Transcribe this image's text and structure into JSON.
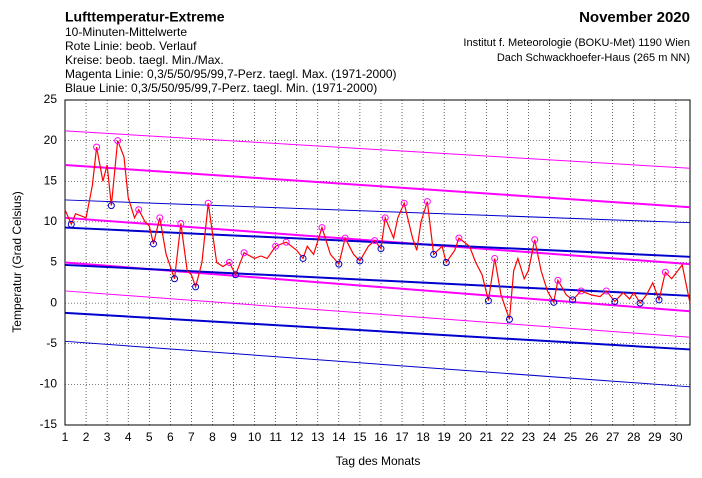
{
  "chart_data": {
    "type": "line",
    "title": "Lufttemperatur-Extreme",
    "subtitle_lines": [
      "10-Minuten-Mittelwerte",
      "Rote Linie: beob. Verlauf",
      "Kreise: beob. taegl. Min./Max.",
      "Magenta Linie: 0,3/5/50/95/99,7-Perz. taegl. Max. (1971-2000)",
      "Blaue Linie: 0,3/5/50/95/99,7-Perz. taegl. Min. (1971-2000)"
    ],
    "period": "November 2020",
    "source_lines": [
      "Institut f. Meteorologie (BOKU-Met) 1190 Wien",
      "Dach Schwackhoefer-Haus (265 m NN)"
    ],
    "xlabel": "Tag des Monats",
    "ylabel": "Temperatur (Grad Celsius)",
    "xlim": [
      1,
      30.67
    ],
    "ylim": [
      -15,
      25
    ],
    "xticks": [
      1,
      2,
      3,
      4,
      5,
      6,
      7,
      8,
      9,
      10,
      11,
      12,
      13,
      14,
      15,
      16,
      17,
      18,
      19,
      20,
      21,
      22,
      23,
      24,
      25,
      26,
      27,
      28,
      29,
      30
    ],
    "yticks": [
      -15,
      -10,
      -5,
      0,
      5,
      10,
      15,
      20,
      25
    ],
    "grid": true,
    "series": [
      {
        "style": "line",
        "color": "#ff00ff",
        "width": 1,
        "x": [
          1,
          30.67
        ],
        "values": [
          21.2,
          16.6
        ]
      },
      {
        "style": "line",
        "color": "#ff00ff",
        "width": 2,
        "x": [
          1,
          30.67
        ],
        "values": [
          17,
          11.8
        ]
      },
      {
        "style": "line",
        "color": "#ff00ff",
        "width": 2,
        "x": [
          1,
          30.67
        ],
        "values": [
          10.5,
          4.8
        ]
      },
      {
        "style": "line",
        "color": "#ff00ff",
        "width": 2,
        "x": [
          1,
          30.67
        ],
        "values": [
          5,
          -1
        ]
      },
      {
        "style": "line",
        "color": "#ff00ff",
        "width": 1,
        "x": [
          1,
          30.67
        ],
        "values": [
          1.5,
          -4.2
        ]
      },
      {
        "style": "line",
        "color": "#0000cc",
        "width": 1,
        "x": [
          1,
          30.67
        ],
        "values": [
          12.7,
          9.9
        ]
      },
      {
        "style": "line",
        "color": "#0000cc",
        "width": 2,
        "x": [
          1,
          30.67
        ],
        "values": [
          9.3,
          5.7
        ]
      },
      {
        "style": "line",
        "color": "#0000cc",
        "width": 2,
        "x": [
          1,
          30.67
        ],
        "values": [
          4.7,
          0.9
        ]
      },
      {
        "style": "line",
        "color": "#0000cc",
        "width": 2,
        "x": [
          1,
          30.67
        ],
        "values": [
          -1.2,
          -5.7
        ]
      },
      {
        "style": "line",
        "color": "#0000cc",
        "width": 1,
        "x": [
          1,
          30.67
        ],
        "values": [
          -4.7,
          -10.3
        ]
      },
      {
        "style": "line",
        "color": "#ff0000",
        "width": 1.2,
        "x": [
          1,
          1.3,
          1.5,
          2,
          2.3,
          2.5,
          2.8,
          3,
          3.2,
          3.5,
          3.8,
          4,
          4.3,
          4.5,
          4.8,
          5,
          5.2,
          5.5,
          5.8,
          6.2,
          6.5,
          6.8,
          7,
          7.2,
          7.5,
          7.8,
          8.2,
          8.5,
          8.8,
          9.1,
          9.5,
          10,
          10.3,
          10.6,
          11,
          11.5,
          12,
          12.3,
          12.5,
          12.8,
          13.2,
          13.6,
          14,
          14.3,
          14.7,
          15,
          15.4,
          15.7,
          16,
          16.2,
          16.6,
          16.8,
          17.1,
          17.5,
          17.7,
          17.9,
          18.2,
          18.5,
          18.9,
          19.1,
          19.5,
          19.7,
          20.2,
          20.5,
          20.8,
          21.1,
          21.4,
          21.7,
          22.1,
          22.3,
          22.5,
          22.8,
          23,
          23.3,
          23.6,
          23.9,
          24.2,
          24.4,
          24.8,
          25.1,
          25.5,
          26,
          26.4,
          26.7,
          27.1,
          27.5,
          27.8,
          28,
          28.3,
          28.6,
          28.9,
          29.2,
          29.5,
          29.8,
          30.3,
          30.67
        ],
        "values": [
          11.5,
          9.7,
          11,
          10.5,
          14.5,
          19.2,
          15,
          17,
          12,
          20,
          18,
          13,
          10.5,
          11.5,
          10,
          9.5,
          7.3,
          10.5,
          6,
          3,
          9.8,
          4,
          3.5,
          2,
          5,
          12.3,
          5,
          4.5,
          5,
          3.5,
          6.2,
          5.5,
          5.8,
          5.5,
          7,
          7.5,
          6.5,
          5.5,
          7,
          6,
          9.3,
          6,
          4.8,
          8,
          6,
          5.2,
          7,
          7.7,
          6.7,
          10.5,
          8,
          10.5,
          12.3,
          8,
          6.5,
          10,
          12.5,
          6,
          7,
          5,
          6.5,
          8,
          7,
          5,
          3.5,
          0.3,
          5.5,
          1,
          -2,
          4,
          5.5,
          3,
          4,
          7.8,
          4,
          1.5,
          0.1,
          2.8,
          1,
          0.4,
          1.5,
          1,
          0.8,
          1.5,
          0.2,
          1.3,
          0.5,
          1.3,
          0,
          1,
          2.5,
          0.4,
          3.8,
          3,
          4.7,
          0
        ]
      },
      {
        "style": "circle",
        "color": "#ff00ff",
        "width": 1,
        "x": [
          2.5,
          3.5,
          4.5,
          5.5,
          6.5,
          7.8,
          8.8,
          9.5,
          11,
          11.5,
          13.2,
          14.3,
          15.7,
          16.2,
          17.1,
          18.2,
          19.7,
          21.4,
          23.3,
          24.4,
          25.5,
          26.7,
          29.5
        ],
        "values": [
          19.2,
          20,
          11.5,
          10.5,
          9.8,
          12.3,
          5,
          6.2,
          7,
          7.5,
          9.3,
          8,
          7.7,
          10.5,
          12.3,
          12.5,
          8,
          5.5,
          7.8,
          2.8,
          1.5,
          1.5,
          3.8
        ]
      },
      {
        "style": "circle",
        "color": "#0000cc",
        "width": 1,
        "x": [
          1.3,
          3.2,
          5.2,
          6.2,
          7.2,
          9.1,
          12.3,
          14,
          15,
          16,
          18.5,
          19.1,
          21.1,
          22.1,
          24.2,
          25.1,
          27.1,
          28.3,
          29.2
        ],
        "values": [
          9.7,
          12,
          7.3,
          3,
          2,
          3.5,
          5.5,
          4.8,
          5.2,
          6.7,
          6,
          5,
          0.3,
          -2,
          0.1,
          0.4,
          0.2,
          0,
          0.4
        ]
      }
    ]
  }
}
